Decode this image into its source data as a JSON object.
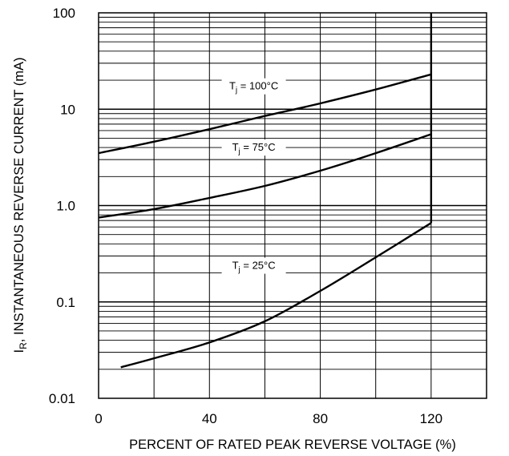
{
  "chart_data": {
    "type": "line",
    "xscale": "linear",
    "yscale": "log",
    "xlim": [
      0,
      140
    ],
    "ylim": [
      0.01,
      100
    ],
    "xticks": [
      0,
      40,
      80,
      120
    ],
    "xtick_labels": [
      "0",
      "40",
      "80",
      "120"
    ],
    "yticks": [
      0.01,
      0.1,
      1.0,
      10,
      100
    ],
    "ytick_labels": [
      "0.01",
      "0.1",
      "1.0",
      "10",
      "100"
    ],
    "xlabel": "PERCENT OF RATED PEAK REVERSE VOLTAGE (%)",
    "ylabel_main": "I",
    "ylabel_sub": "R",
    "ylabel_rest": ", INSTANTANEOUS REVERSE CURRENT (mA)",
    "grid": true,
    "series": [
      {
        "name": "Tj = 100°C",
        "label_main": "T",
        "label_sub": "j",
        "label_rest": " = 100°C",
        "label_at": [
          56,
          16
        ],
        "x": [
          0,
          20,
          40,
          60,
          80,
          100,
          120
        ],
        "y": [
          3.5,
          4.6,
          6.2,
          8.5,
          11.5,
          16.0,
          23.0
        ]
      },
      {
        "name": "Tj = 75°C",
        "label_main": "T",
        "label_sub": "j",
        "label_rest": " = 75°C",
        "label_at": [
          56,
          3.7
        ],
        "x": [
          0,
          20,
          40,
          60,
          80,
          100,
          120
        ],
        "y": [
          0.75,
          0.92,
          1.2,
          1.6,
          2.3,
          3.5,
          5.5
        ]
      },
      {
        "name": "Tj = 25°C",
        "label_main": "T",
        "label_sub": "j",
        "label_rest": " = 25°C",
        "label_at": [
          56,
          0.22
        ],
        "x": [
          8,
          20,
          40,
          60,
          80,
          100,
          120
        ],
        "y": [
          0.021,
          0.026,
          0.038,
          0.063,
          0.13,
          0.29,
          0.66
        ]
      }
    ],
    "vertical_cutoff": {
      "x": 120,
      "y_from": 0.66,
      "y_to": 100
    }
  }
}
